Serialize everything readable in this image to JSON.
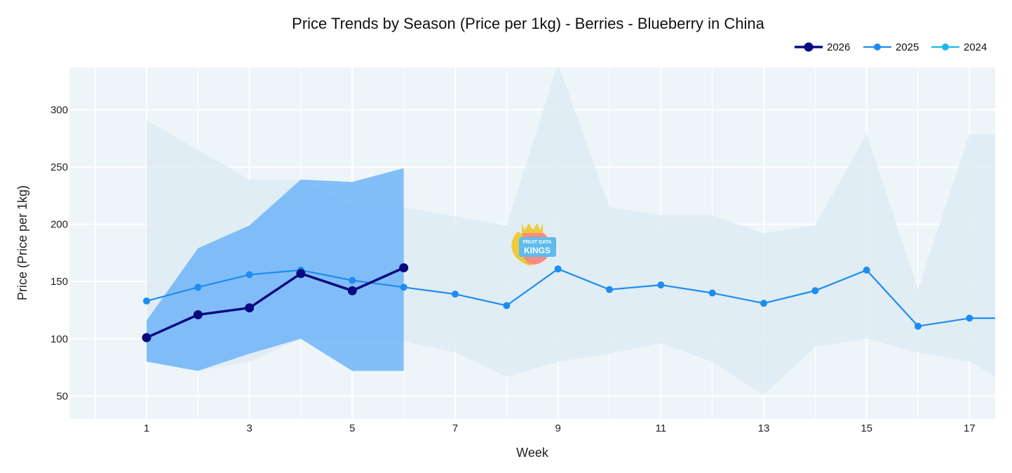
{
  "chart_data": {
    "type": "line",
    "title": "Price Trends by Season (Price per 1kg) - Berries - Blueberry in China",
    "xlabel": "Week",
    "ylabel": "Price (Price per 1kg)",
    "xlim": [
      -0.5,
      17.5
    ],
    "ylim": [
      30,
      337
    ],
    "x_ticks": [
      1,
      3,
      5,
      7,
      9,
      11,
      13,
      15,
      17
    ],
    "y_ticks": [
      50,
      100,
      150,
      200,
      250,
      300
    ],
    "grid": true,
    "legend_position": "top-right",
    "series": [
      {
        "name": "2026",
        "color": "#0a0a80",
        "x": [
          1,
          2,
          3,
          4,
          5,
          6
        ],
        "values": [
          101,
          121,
          127,
          157,
          142,
          162
        ],
        "band": {
          "lower": [
            80,
            72,
            87,
            100,
            72,
            72
          ],
          "upper": [
            116,
            179,
            199,
            239,
            237,
            249
          ],
          "color": "#6fb4f8"
        }
      },
      {
        "name": "2025",
        "color": "#1e8cf0",
        "x": [
          1,
          2,
          3,
          4,
          5,
          6,
          7,
          8,
          9,
          10,
          11,
          12,
          13,
          14,
          15,
          16,
          17,
          17.5
        ],
        "values": [
          133,
          145,
          156,
          160,
          151,
          145,
          139,
          129,
          161,
          143,
          147,
          140,
          131,
          142,
          160,
          111,
          118,
          118
        ],
        "band": {
          "lower": [
            80,
            72,
            80,
            100,
            100,
            98,
            88,
            67,
            80,
            87,
            96,
            80,
            51,
            93,
            100,
            88,
            80,
            67
          ],
          "upper": [
            291,
            265,
            239,
            239,
            215,
            215,
            207,
            199,
            340,
            215,
            208,
            208,
            192,
            199,
            279,
            143,
            279,
            279
          ],
          "color": "#dbe9f2"
        }
      },
      {
        "name": "2024",
        "color": "#1ab8ea",
        "x": [],
        "values": []
      }
    ]
  },
  "watermark": {
    "line1": "FRUIT DATA",
    "line2": "KINGS"
  }
}
